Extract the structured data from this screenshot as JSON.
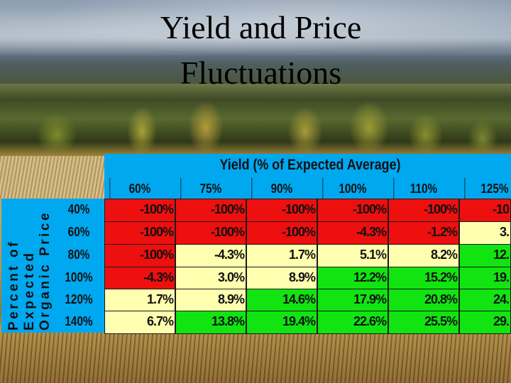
{
  "slide": {
    "title_line1": "Yield and Price",
    "title_line2": "Fluctuations"
  },
  "table": {
    "top_header": "Yield (% of Expected Average)",
    "side_header_lines": [
      "Percent of",
      "Expected",
      "Organic Price"
    ],
    "col_headers": [
      "60%",
      "75%",
      "90%",
      "100%",
      "110%",
      "125%"
    ],
    "row_headers": [
      "40%",
      "60%",
      "80%",
      "100%",
      "120%",
      "140%"
    ],
    "rows": [
      [
        "-100%",
        "-100%",
        "-100%",
        "-100%",
        "-100%",
        "-10"
      ],
      [
        "-100%",
        "-100%",
        "-100%",
        "-4.3%",
        "-1.2%",
        "3."
      ],
      [
        "-100%",
        "-4.3%",
        "1.7%",
        "5.1%",
        "8.2%",
        "12."
      ],
      [
        "-4.3%",
        "3.0%",
        "8.9%",
        "12.2%",
        "15.2%",
        "19."
      ],
      [
        "1.7%",
        "8.9%",
        "14.6%",
        "17.9%",
        "20.8%",
        "24."
      ],
      [
        "6.7%",
        "13.8%",
        "19.4%",
        "22.6%",
        "25.5%",
        "29."
      ]
    ],
    "cell_colors": [
      [
        "red",
        "red",
        "red",
        "red",
        "red",
        "red"
      ],
      [
        "red",
        "red",
        "red",
        "red",
        "red",
        "yellow"
      ],
      [
        "red",
        "yellow",
        "yellow",
        "yellow",
        "yellow",
        "green"
      ],
      [
        "red",
        "yellow",
        "yellow",
        "green",
        "green",
        "green"
      ],
      [
        "yellow",
        "yellow",
        "green",
        "green",
        "green",
        "green"
      ],
      [
        "yellow",
        "green",
        "green",
        "green",
        "green",
        "green"
      ]
    ],
    "colors": {
      "red": "#ee0f0f",
      "yellow": "#ffffb0",
      "green": "#11e411",
      "header_blue": "#00a8f0"
    }
  }
}
